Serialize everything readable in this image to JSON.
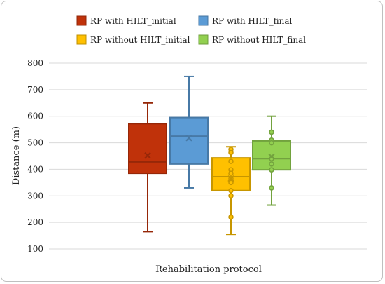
{
  "chart_data": {
    "type": "box",
    "xlabel": "Rehabilitation protocol",
    "ylabel": "Distance (m)",
    "ylim": [
      100,
      800
    ],
    "yticks": [
      "100",
      "200",
      "300",
      "400",
      "500",
      "600",
      "700",
      "800"
    ],
    "grid": true,
    "legend": "top",
    "series": [
      {
        "name": "RP with HILT_initial",
        "color": "#c0320a",
        "min": 165,
        "q1": 385,
        "median": 428,
        "q3": 572,
        "max": 650,
        "mean": 452,
        "points": []
      },
      {
        "name": "RP with HILT_final",
        "color": "#5b9bd5",
        "min": 330,
        "q1": 420,
        "median": 525,
        "q3": 595,
        "max": 750,
        "mean": 518,
        "points": []
      },
      {
        "name": "RP without HILT_initial",
        "color": "#ffc000",
        "min": 155,
        "q1": 320,
        "median": 372,
        "q3": 443,
        "max": 485,
        "mean": 365,
        "points": [
          475,
          463,
          430,
          398,
          385,
          365,
          350,
          320,
          300,
          220
        ]
      },
      {
        "name": "RP without HILT_final",
        "color": "#92d050",
        "min": 265,
        "q1": 398,
        "median": 440,
        "q3": 507,
        "max": 600,
        "mean": 448,
        "points": [
          540,
          510,
          500,
          440,
          420,
          398,
          330
        ]
      }
    ]
  }
}
